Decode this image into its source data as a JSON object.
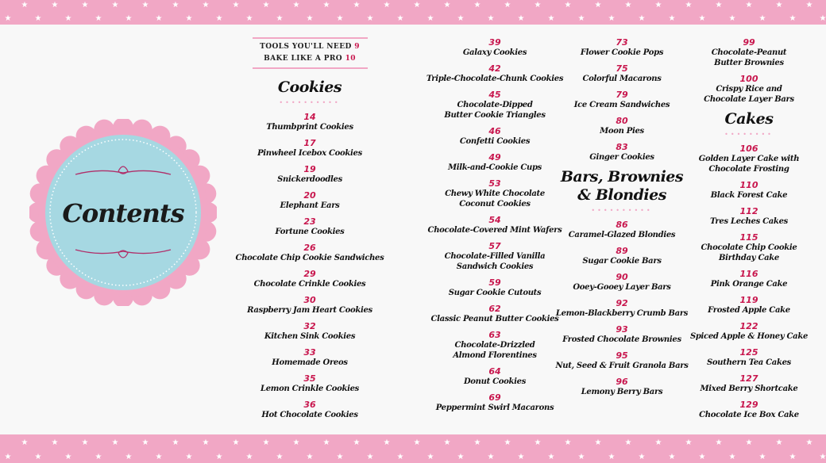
{
  "title": "Contents",
  "colors": {
    "pink": "#f1a7c5",
    "accent": "#c8174e",
    "blue": "#a6d8e2"
  },
  "front_matter": [
    {
      "label": "TOOLS YOU'LL NEED",
      "page": "9"
    },
    {
      "label": "BAKE LIKE A PRO",
      "page": "10"
    }
  ],
  "sections": {
    "cookies": {
      "heading": "Cookies",
      "items": [
        {
          "page": "14",
          "title": "Thumbprint Cookies"
        },
        {
          "page": "17",
          "title": "Pinwheel Icebox Cookies"
        },
        {
          "page": "19",
          "title": "Snickerdoodles"
        },
        {
          "page": "20",
          "title": "Elephant Ears"
        },
        {
          "page": "23",
          "title": "Fortune Cookies"
        },
        {
          "page": "26",
          "title": "Chocolate Chip Cookie Sandwiches"
        },
        {
          "page": "29",
          "title": "Chocolate Crinkle Cookies"
        },
        {
          "page": "30",
          "title": "Raspberry Jam Heart Cookies"
        },
        {
          "page": "32",
          "title": "Kitchen Sink Cookies"
        },
        {
          "page": "33",
          "title": "Homemade Oreos"
        },
        {
          "page": "35",
          "title": "Lemon Crinkle Cookies"
        },
        {
          "page": "36",
          "title": "Hot Chocolate Cookies"
        },
        {
          "page": "39",
          "title": "Galaxy Cookies"
        },
        {
          "page": "42",
          "title": "Triple-Chocolate-Chunk Cookies"
        },
        {
          "page": "45",
          "title": "Chocolate-Dipped\nButter Cookie Triangles"
        },
        {
          "page": "46",
          "title": "Confetti Cookies"
        },
        {
          "page": "49",
          "title": "Milk-and-Cookie Cups"
        },
        {
          "page": "53",
          "title": "Chewy White Chocolate\nCoconut Cookies"
        },
        {
          "page": "54",
          "title": "Chocolate-Covered Mint Wafers"
        },
        {
          "page": "57",
          "title": "Chocolate-Filled Vanilla\nSandwich Cookies"
        },
        {
          "page": "59",
          "title": "Sugar Cookie Cutouts"
        },
        {
          "page": "62",
          "title": "Classic Peanut Butter Cookies"
        },
        {
          "page": "63",
          "title": "Chocolate-Drizzled\nAlmond Florentines"
        },
        {
          "page": "64",
          "title": "Donut Cookies"
        },
        {
          "page": "69",
          "title": "Peppermint Swirl Macarons"
        },
        {
          "page": "73",
          "title": "Flower Cookie Pops"
        },
        {
          "page": "75",
          "title": "Colorful Macarons"
        },
        {
          "page": "79",
          "title": "Ice Cream Sandwiches"
        },
        {
          "page": "80",
          "title": "Moon Pies"
        },
        {
          "page": "83",
          "title": "Ginger Cookies"
        }
      ]
    },
    "bars": {
      "heading": "Bars, Brownies\n& Blondies",
      "items": [
        {
          "page": "86",
          "title": "Caramel-Glazed Blondies"
        },
        {
          "page": "89",
          "title": "Sugar Cookie Bars"
        },
        {
          "page": "90",
          "title": "Ooey-Gooey Layer Bars"
        },
        {
          "page": "92",
          "title": "Lemon-Blackberry Crumb Bars"
        },
        {
          "page": "93",
          "title": "Frosted Chocolate Brownies"
        },
        {
          "page": "95",
          "title": "Nut, Seed & Fruit Granola Bars"
        },
        {
          "page": "96",
          "title": "Lemony Berry Bars"
        },
        {
          "page": "99",
          "title": "Chocolate-Peanut\nButter Brownies"
        },
        {
          "page": "100",
          "title": "Crispy Rice and\nChocolate Layer Bars"
        }
      ]
    },
    "cakes": {
      "heading": "Cakes",
      "items": [
        {
          "page": "106",
          "title": "Golden Layer Cake with\nChocolate Frosting"
        },
        {
          "page": "110",
          "title": "Black Forest Cake"
        },
        {
          "page": "112",
          "title": "Tres Leches Cakes"
        },
        {
          "page": "115",
          "title": "Chocolate Chip Cookie\nBirthday Cake"
        },
        {
          "page": "116",
          "title": "Pink Orange Cake"
        },
        {
          "page": "119",
          "title": "Frosted Apple Cake"
        },
        {
          "page": "122",
          "title": "Spiced Apple & Honey Cake"
        },
        {
          "page": "125",
          "title": "Southern Tea Cakes"
        },
        {
          "page": "127",
          "title": "Mixed Berry Shortcake"
        },
        {
          "page": "129",
          "title": "Chocolate Ice Box Cake"
        }
      ]
    }
  }
}
